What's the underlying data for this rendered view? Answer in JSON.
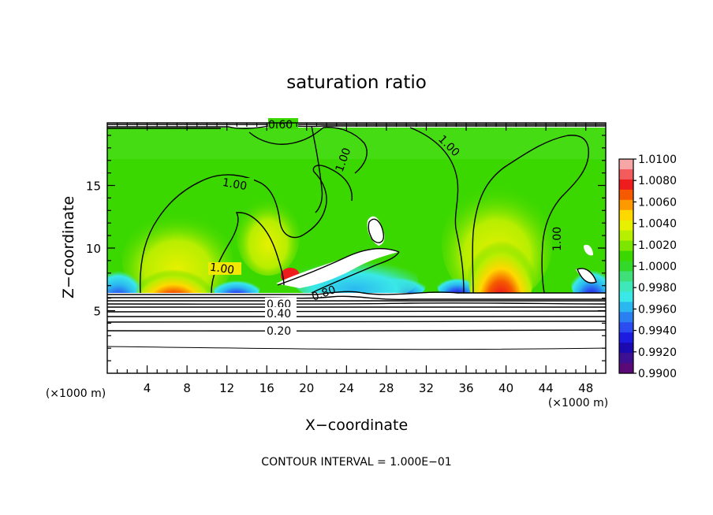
{
  "chart_data": {
    "type": "heatmap",
    "title": "saturation ratio",
    "xlabel": "X−coordinate",
    "ylabel": "Z−coordinate",
    "x_unit": "(×1000 m)",
    "y_unit": "(×1000 m)",
    "xlim": [
      0,
      50
    ],
    "ylim": [
      0,
      20
    ],
    "x_ticks": [
      "4",
      "8",
      "12",
      "16",
      "20",
      "24",
      "28",
      "32",
      "36",
      "40",
      "44",
      "48"
    ],
    "y_ticks": [
      "5",
      "10",
      "15"
    ],
    "footer": "CONTOUR INTERVAL = 1.000E−01",
    "colorbar": {
      "ticks": [
        "1.0100",
        "1.0080",
        "1.0060",
        "1.0040",
        "1.0020",
        "1.0000",
        "0.9980",
        "0.9960",
        "0.9940",
        "0.9920",
        "0.9900"
      ],
      "colors": [
        "#f7a6a6",
        "#f25c5c",
        "#ee1c1c",
        "#f55a00",
        "#ff9900",
        "#ffd800",
        "#e6f000",
        "#b8ee00",
        "#7de600",
        "#3bd800",
        "#34d82a",
        "#3fe07a",
        "#3fe8b8",
        "#3ae8e8",
        "#2bb8f0",
        "#2a80f0",
        "#2a4cf0",
        "#1c1ce0",
        "#1a0ab0",
        "#3c1090",
        "#5a0a78"
      ]
    },
    "contour_labels": [
      "0.60",
      "1.00",
      "1.00",
      "1.00",
      "1.00",
      "1.00",
      "0.80",
      "0.60",
      "0.40",
      "0.20"
    ],
    "contour_levels": [
      0.2,
      0.4,
      0.6,
      0.8,
      1.0
    ]
  }
}
